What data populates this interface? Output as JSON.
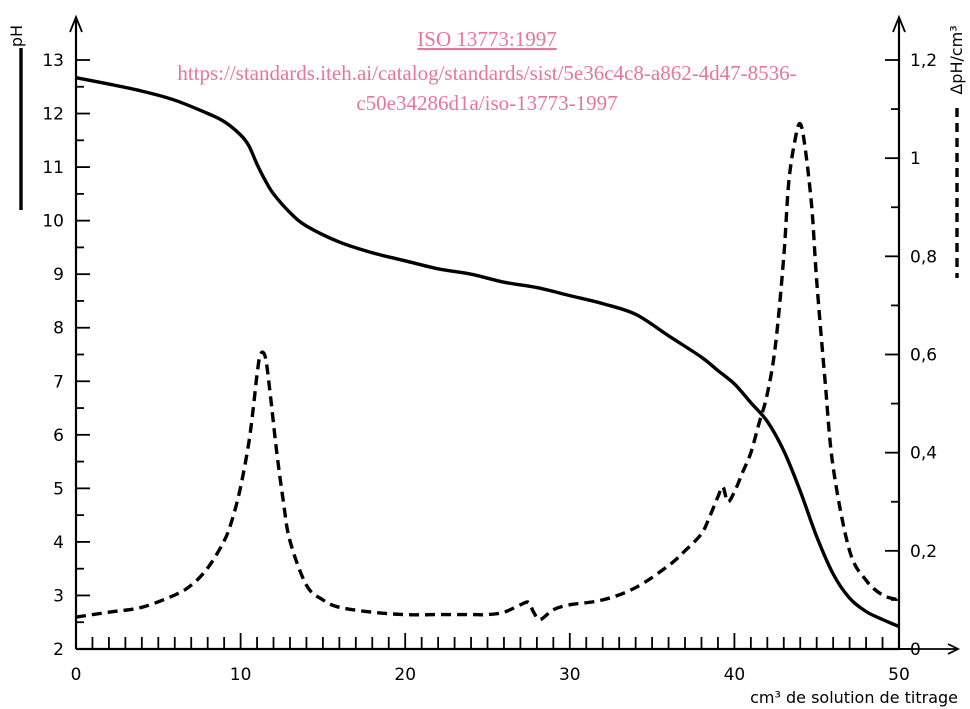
{
  "watermark": {
    "title": "ISO 13773:1997",
    "url_line1": "https://standards.iteh.ai/catalog/standards/sist/5e36c4c8-a862-4d47-8536-",
    "url_line2": "c50e34286d1a/iso-13773-1997",
    "color": "#e8759a"
  },
  "chart_data": {
    "type": "line",
    "title": "",
    "xlabel": "cm³ de solution de titrage",
    "ylabel_left": "pH",
    "ylabel_right": "ΔpH/cm³",
    "xlim": [
      0,
      50
    ],
    "ylim_left": [
      2,
      13.5
    ],
    "ylim_right": [
      0,
      1.3
    ],
    "x_ticks": [
      "0",
      "10",
      "20",
      "30",
      "40",
      "50"
    ],
    "y_ticks_left": [
      "2",
      "3",
      "4",
      "5",
      "6",
      "7",
      "8",
      "9",
      "10",
      "11",
      "12",
      "13"
    ],
    "y_ticks_right": [
      "0",
      "0,2",
      "0,4",
      "0,6",
      "0,8",
      "1",
      "1,2"
    ],
    "grid": false,
    "series": [
      {
        "axis": "left",
        "style": "solid",
        "x": [
          0,
          2,
          4,
          6,
          8,
          9,
          10,
          10.5,
          11,
          11.5,
          12,
          13,
          14,
          16,
          18,
          20,
          22,
          24,
          26,
          28,
          30,
          32,
          34,
          36,
          38,
          39,
          40,
          41,
          42,
          43,
          44,
          45,
          46,
          47,
          48,
          49,
          50
        ],
        "y": [
          12.67,
          12.55,
          12.42,
          12.25,
          12.0,
          11.85,
          11.6,
          11.4,
          11.05,
          10.75,
          10.5,
          10.15,
          9.9,
          9.6,
          9.4,
          9.25,
          9.1,
          9.0,
          8.85,
          8.75,
          8.6,
          8.45,
          8.25,
          7.85,
          7.45,
          7.2,
          6.95,
          6.6,
          6.25,
          5.7,
          4.95,
          4.1,
          3.4,
          2.95,
          2.7,
          2.55,
          2.42
        ]
      },
      {
        "axis": "right",
        "style": "dashed",
        "x": [
          0,
          2,
          4,
          6,
          7,
          8,
          9,
          9.5,
          10,
          10.5,
          10.8,
          11,
          11.2,
          11.5,
          11.8,
          12.2,
          12.6,
          13,
          14,
          15,
          16,
          18,
          20,
          22,
          24,
          25,
          26,
          27,
          27.5,
          27.8,
          28.2,
          29,
          30,
          32,
          34,
          36,
          37,
          38,
          38.5,
          39,
          39.3,
          39.6,
          40,
          40.5,
          41,
          41.5,
          42,
          42.5,
          43,
          43.3,
          43.7,
          44,
          44.3,
          44.7,
          45,
          45.5,
          46,
          47,
          48,
          49,
          50
        ],
        "y": [
          0.065,
          0.075,
          0.085,
          0.11,
          0.13,
          0.165,
          0.22,
          0.265,
          0.33,
          0.42,
          0.5,
          0.56,
          0.6,
          0.595,
          0.52,
          0.4,
          0.3,
          0.22,
          0.13,
          0.1,
          0.085,
          0.075,
          0.07,
          0.07,
          0.07,
          0.07,
          0.075,
          0.09,
          0.095,
          0.075,
          0.06,
          0.08,
          0.09,
          0.1,
          0.125,
          0.17,
          0.2,
          0.235,
          0.27,
          0.31,
          0.33,
          0.3,
          0.32,
          0.36,
          0.4,
          0.46,
          0.52,
          0.62,
          0.8,
          0.95,
          1.04,
          1.07,
          1.02,
          0.9,
          0.75,
          0.55,
          0.37,
          0.2,
          0.14,
          0.11,
          0.1
        ]
      }
    ]
  }
}
